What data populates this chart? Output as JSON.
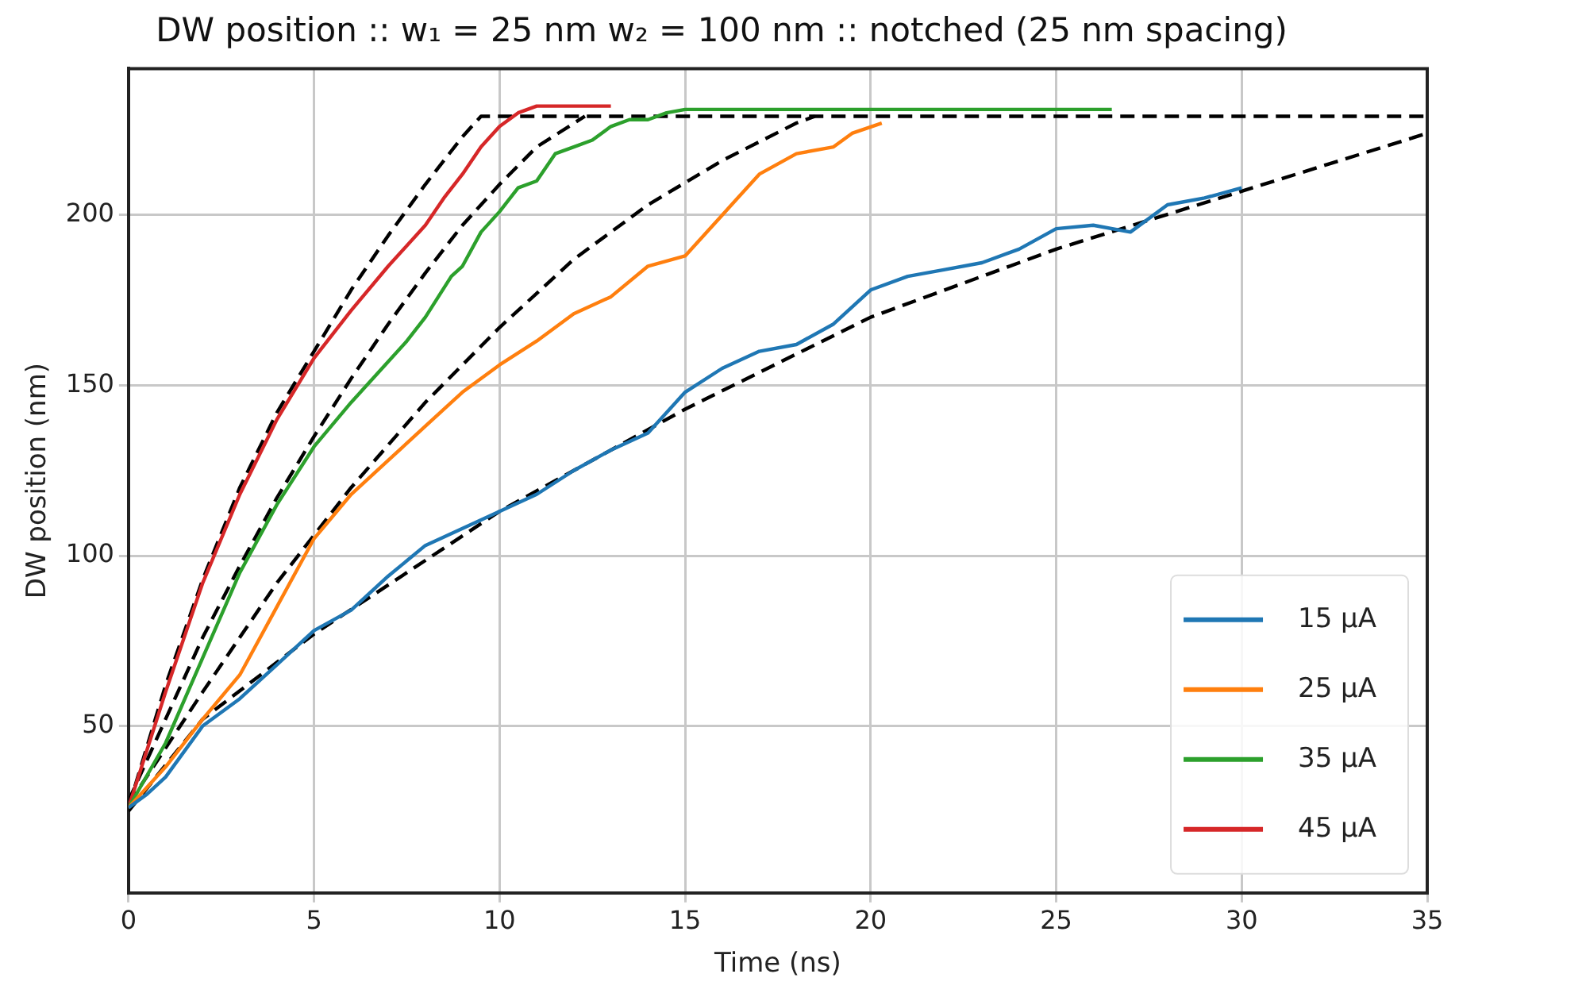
{
  "chart_data": {
    "type": "line",
    "title": "DW position :: w₁ = 25 nm w₂ = 100 nm :: notched (25 nm spacing)",
    "xlabel": "Time (ns)",
    "ylabel": "DW position (nm)",
    "xlim": [
      0,
      35
    ],
    "xticks": [
      0,
      5,
      10,
      15,
      20,
      25,
      30,
      35
    ],
    "ylim": [
      1,
      243
    ],
    "yticks": [
      50,
      100,
      150,
      200
    ],
    "grid": true,
    "legend": "bottom right",
    "marker": "none",
    "series": [
      {
        "name": "15 μA",
        "color": "#1f77b4",
        "line_style": "solid",
        "x": [
          0,
          0.5,
          1,
          2,
          3,
          4,
          5,
          6,
          7,
          8,
          9,
          10,
          11,
          12,
          13,
          14,
          15,
          16,
          17,
          18,
          19,
          20,
          21,
          22,
          23,
          24,
          25,
          26,
          27,
          28,
          29,
          30
        ],
        "values": [
          26,
          30,
          35,
          50,
          58,
          68,
          78,
          84,
          94,
          103,
          108,
          113,
          118,
          125,
          131,
          136,
          148,
          155,
          160,
          162,
          168,
          178,
          182,
          184,
          186,
          190,
          196,
          197,
          195,
          203,
          205,
          208
        ]
      },
      {
        "name": "25 μA",
        "color": "#ff7f0e",
        "line_style": "solid",
        "x": [
          0,
          1,
          2,
          3,
          4,
          5,
          6,
          7,
          8,
          9,
          10,
          11,
          12,
          13,
          14,
          15,
          16,
          17,
          18,
          19,
          19.5,
          20.3
        ],
        "values": [
          26,
          38,
          52,
          65,
          85,
          105,
          118,
          128,
          138,
          148,
          156,
          163,
          171,
          176,
          185,
          188,
          200,
          212,
          218,
          220,
          224,
          227
        ]
      },
      {
        "name": "35 μA",
        "color": "#2ca02c",
        "line_style": "solid",
        "x": [
          0,
          1,
          2,
          3,
          4,
          5,
          6,
          7,
          7.5,
          8,
          8.7,
          9,
          9.5,
          10,
          10.5,
          11,
          11.5,
          12,
          12.5,
          13,
          13.5,
          14,
          14.5,
          15,
          26.5
        ],
        "values": [
          26,
          45,
          70,
          95,
          115,
          132,
          145,
          157,
          163,
          170,
          182,
          185,
          195,
          201,
          208,
          210,
          218,
          220,
          222,
          226,
          228,
          228,
          230,
          231,
          231
        ]
      },
      {
        "name": "45 μA",
        "color": "#d62728",
        "line_style": "solid",
        "x": [
          0,
          1,
          2,
          3,
          4,
          5,
          6,
          7,
          8,
          8.5,
          9,
          9.5,
          10,
          10.5,
          11,
          13
        ],
        "values": [
          26,
          60,
          92,
          118,
          140,
          158,
          172,
          185,
          197,
          205,
          212,
          220,
          226,
          230,
          232,
          232
        ]
      },
      {
        "color": "#000000",
        "line_style": "dashed",
        "x": [
          0,
          2,
          5,
          10,
          15,
          20,
          25,
          30,
          35
        ],
        "values": [
          25,
          52,
          77,
          113,
          143,
          170,
          190,
          207,
          224
        ]
      },
      {
        "color": "#000000",
        "line_style": "dashed",
        "x": [
          0,
          2,
          4,
          6,
          8,
          10,
          12,
          14,
          16,
          18,
          18.5
        ],
        "values": [
          27,
          60,
          92,
          120,
          145,
          167,
          187,
          203,
          216,
          227,
          229
        ]
      },
      {
        "color": "#000000",
        "line_style": "dashed",
        "x": [
          0,
          1,
          2,
          3,
          4,
          5,
          6,
          7,
          8,
          9,
          10,
          11,
          12.3
        ],
        "values": [
          28,
          52,
          76,
          97,
          117,
          135,
          152,
          168,
          183,
          197,
          209,
          220,
          229
        ]
      },
      {
        "color": "#000000",
        "line_style": "dashed",
        "x": [
          0,
          1,
          2,
          3,
          4,
          5,
          6,
          7,
          8,
          9,
          9.5,
          35
        ],
        "values": [
          26,
          62,
          93,
          120,
          142,
          160,
          178,
          194,
          209,
          223,
          229,
          229
        ]
      }
    ]
  }
}
